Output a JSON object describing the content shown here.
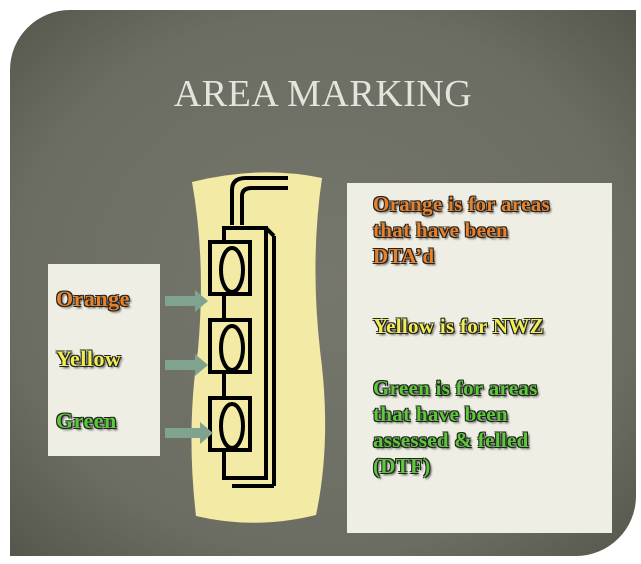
{
  "title": "AREA MARKING",
  "legend": {
    "labels": [
      {
        "text": "Orange",
        "color": "#e8822a"
      },
      {
        "text": "Yellow",
        "color": "#f0ee50"
      },
      {
        "text": "Green",
        "color": "#5cc83a"
      }
    ]
  },
  "notes": [
    {
      "lines": [
        "Orange is for areas",
        "that have been",
        "DTA’d"
      ],
      "color": "#e8822a"
    },
    {
      "lines": [
        "Yellow is for NWZ"
      ],
      "color": "#f0ee50"
    },
    {
      "lines": [
        "Green is for areas",
        "that have been",
        "assessed & felled",
        "(DTF)"
      ],
      "color": "#5cc83a"
    }
  ]
}
